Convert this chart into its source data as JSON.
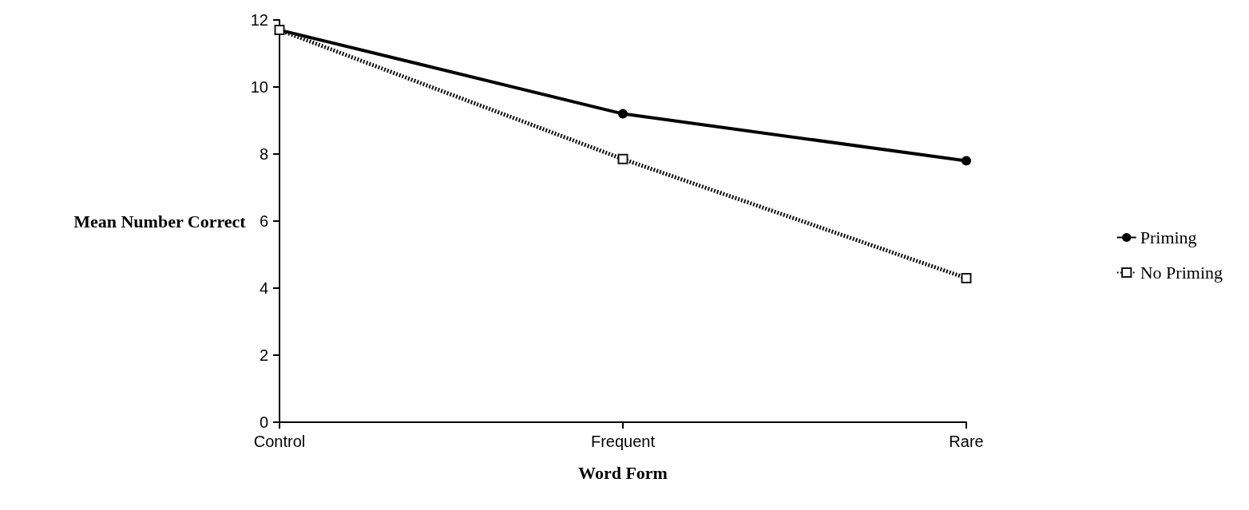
{
  "chart_data": {
    "type": "line",
    "xlabel": "Word Form",
    "ylabel": "Mean Number Correct",
    "categories": [
      "Control",
      "Frequent",
      "Rare"
    ],
    "series": [
      {
        "name": "Priming",
        "color": "#000000",
        "values": [
          11.7,
          9.2,
          7.8
        ],
        "marker": "circle",
        "line_style": "solid"
      },
      {
        "name": "No Priming",
        "color": "#141414",
        "values": [
          11.7,
          7.85,
          4.3
        ],
        "marker": "square",
        "line_style": "dotted"
      }
    ],
    "ylim": [
      0,
      12
    ],
    "yticks": [
      0,
      2,
      4,
      6,
      8,
      10,
      12
    ],
    "grid": false,
    "legend": "right"
  }
}
